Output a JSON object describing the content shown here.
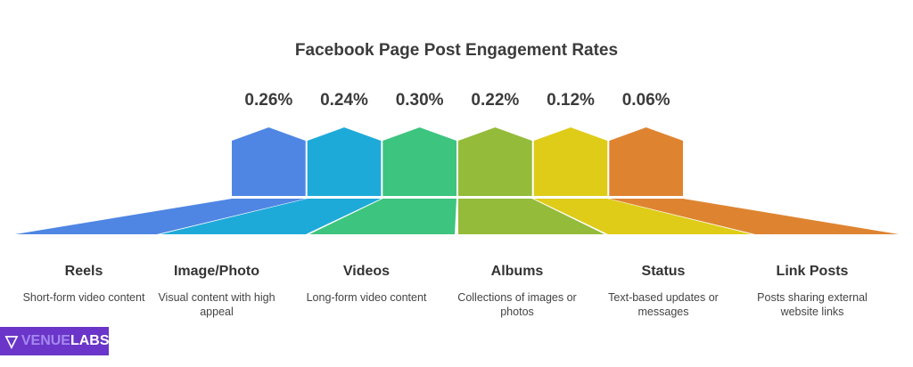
{
  "chart_data": {
    "type": "bar",
    "title": "Facebook Page Post Engagement Rates",
    "categories": [
      "Reels",
      "Image/Photo",
      "Videos",
      "Albums",
      "Status",
      "Link Posts"
    ],
    "values": [
      0.26,
      0.24,
      0.3,
      0.22,
      0.12,
      0.06
    ],
    "value_labels": [
      "0.26%",
      "0.24%",
      "0.30%",
      "0.22%",
      "0.12%",
      "0.06%"
    ],
    "descriptions": [
      "Short-form video content",
      "Visual content with high appeal",
      "Long-form video content",
      "Collections of images or photos",
      "Text-based updates or messages",
      "Posts sharing external website links"
    ],
    "colors": [
      "#4f86e3",
      "#1eaad9",
      "#3dc47e",
      "#94bb3a",
      "#dfcc18",
      "#de8431"
    ],
    "xlabel": "",
    "ylabel": ""
  },
  "logo": {
    "text_a": "VENUE",
    "text_b": "LABS"
  }
}
